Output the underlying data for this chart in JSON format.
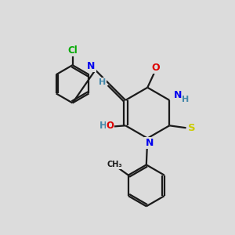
{
  "bg_color": "#dcdcdc",
  "bond_color": "#1a1a1a",
  "atom_colors": {
    "N": "#0000ee",
    "O": "#dd0000",
    "S": "#cccc00",
    "Cl": "#00aa00",
    "HO": "#4488aa",
    "H": "#4488aa",
    "C": "#1a1a1a"
  },
  "figsize": [
    3.0,
    3.0
  ],
  "dpi": 100
}
